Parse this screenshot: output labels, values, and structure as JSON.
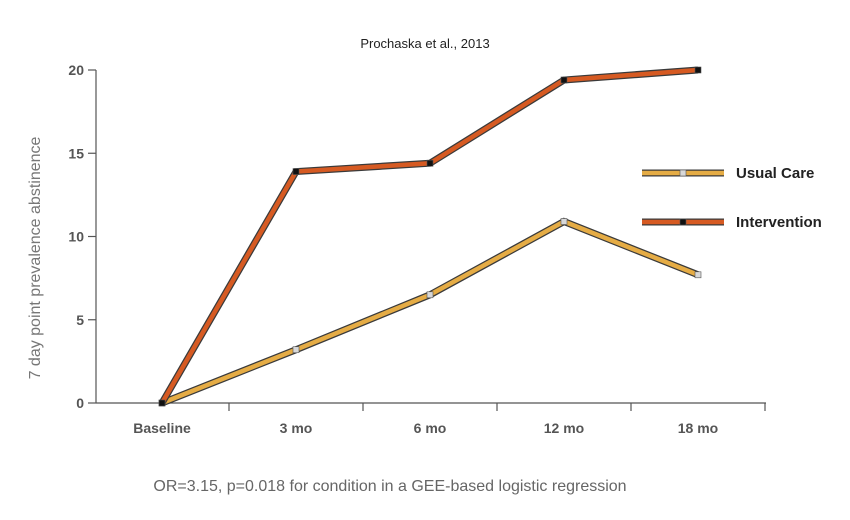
{
  "chart_data": {
    "type": "line",
    "title": "Prochaska et al., 2013",
    "ylabel": "7 day point prevalence abstinence",
    "xlabel": "",
    "categories": [
      "Baseline",
      "3 mo",
      "6 mo",
      "12 mo",
      "18 mo"
    ],
    "ylim": [
      0,
      20
    ],
    "yticks": [
      0,
      5,
      10,
      15,
      20
    ],
    "series": [
      {
        "name": "Usual Care",
        "values": [
          0,
          3.2,
          6.5,
          10.9,
          7.7
        ],
        "color": "#e5ac45",
        "marker_color": "#d8d8d8"
      },
      {
        "name": "Intervention",
        "values": [
          0,
          13.9,
          14.4,
          19.4,
          20.0
        ],
        "color": "#d65a22",
        "marker_color": "#111111"
      }
    ],
    "legend_position": "right",
    "grid": false
  },
  "footnote": "OR=3.15, p=0.018 for condition in a GEE-based logistic regression"
}
